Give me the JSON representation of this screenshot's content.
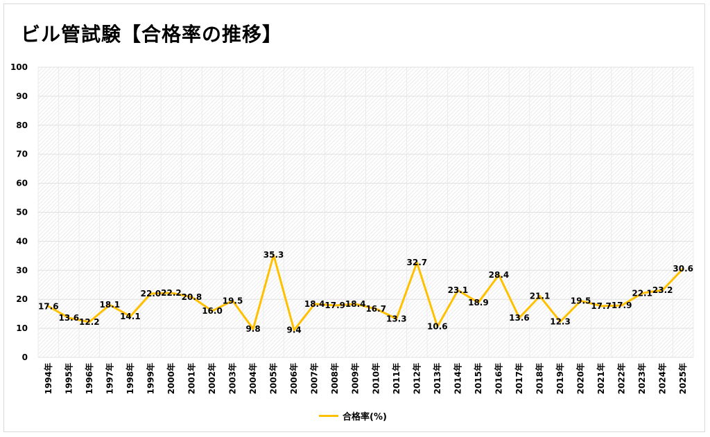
{
  "title": "ビル管試験【合格率の推移】",
  "colors": {
    "line": "#FFC000"
  },
  "chart_data": {
    "type": "line",
    "title": "ビル管試験【合格率の推移】",
    "xlabel": "",
    "ylabel": "",
    "ylim": [
      0,
      100
    ],
    "yticks": [
      0,
      10,
      20,
      30,
      40,
      50,
      60,
      70,
      80,
      90,
      100
    ],
    "grid": true,
    "legend_position": "bottom",
    "categories": [
      "1994年",
      "1995年",
      "1996年",
      "1997年",
      "1998年",
      "1999年",
      "2000年",
      "2001年",
      "2002年",
      "2003年",
      "2004年",
      "2005年",
      "2006年",
      "2007年",
      "2008年",
      "2009年",
      "2010年",
      "2011年",
      "2012年",
      "2013年",
      "2014年",
      "2015年",
      "2016年",
      "2017年",
      "2018年",
      "2019年",
      "2020年",
      "2021年",
      "2022年",
      "2023年",
      "2024年",
      "2025年"
    ],
    "series": [
      {
        "name": "合格率(%)",
        "values": [
          17.6,
          13.6,
          12.2,
          18.1,
          14.1,
          22.0,
          22.2,
          20.8,
          16.0,
          19.5,
          9.8,
          35.3,
          9.4,
          18.4,
          17.9,
          18.4,
          16.7,
          13.3,
          32.7,
          10.6,
          23.1,
          18.9,
          28.4,
          13.6,
          21.1,
          12.3,
          19.5,
          17.7,
          17.9,
          22.1,
          23.2,
          30.6
        ]
      }
    ]
  }
}
